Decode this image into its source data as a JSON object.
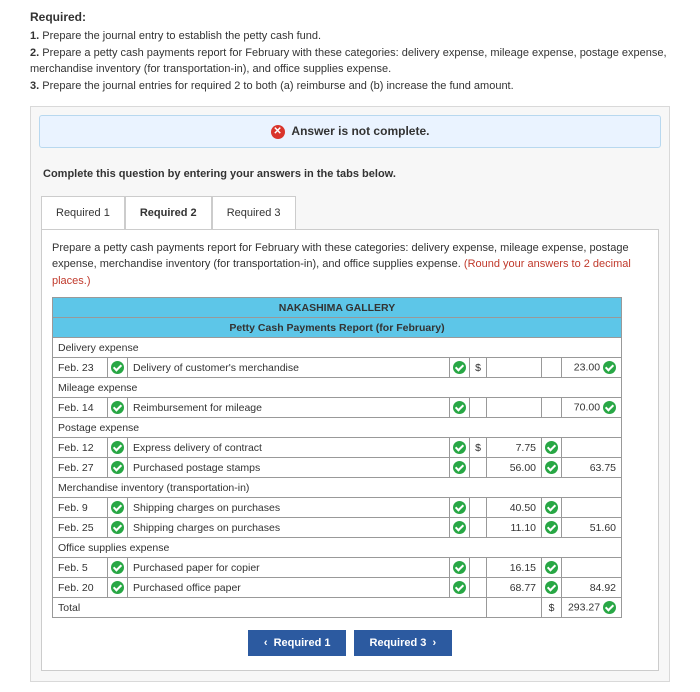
{
  "required": {
    "heading": "Required:",
    "items": [
      {
        "num": "1.",
        "text": "Prepare the journal entry to establish the petty cash fund."
      },
      {
        "num": "2.",
        "text": "Prepare a petty cash payments report for February with these categories: delivery expense, mileage expense, postage expense, merchandise inventory (for transportation-in), and office supplies expense."
      },
      {
        "num": "3.",
        "text": "Prepare the journal entries for required 2 to both (a) reimburse and (b) increase the fund amount."
      }
    ]
  },
  "alert_text": "Answer is not complete.",
  "instruction": "Complete this question by entering your answers in the tabs below.",
  "tabs": [
    {
      "label": "Required 1"
    },
    {
      "label": "Required 2"
    },
    {
      "label": "Required 3"
    }
  ],
  "tab_desc": {
    "main": "Prepare a petty cash payments report for February with these categories: delivery expense, mileage expense, postage expense, merchandise inventory (for transportation-in), and office supplies expense. ",
    "note": "(Round your answers to 2 decimal places.)"
  },
  "report": {
    "company": "NAKASHIMA GALLERY",
    "title": "Petty Cash Payments Report (for February)",
    "sections": [
      {
        "category": "Delivery expense",
        "rows": [
          {
            "date": "Feb. 23",
            "desc": "Delivery of customer's merchandise",
            "amt": "",
            "cur": "$",
            "row_total": "23.00",
            "has_badge": true,
            "has_amt_badge": false,
            "has_total_badge": true
          }
        ]
      },
      {
        "category": "Mileage expense",
        "rows": [
          {
            "date": "Feb. 14",
            "desc": "Reimbursement for mileage",
            "amt": "",
            "cur": "",
            "row_total": "70.00",
            "has_badge": true,
            "has_amt_badge": false,
            "has_total_badge": true
          }
        ]
      },
      {
        "category": "Postage expense",
        "rows": [
          {
            "date": "Feb. 12",
            "desc": "Express delivery of contract",
            "amt": "7.75",
            "cur": "$",
            "row_total": "",
            "has_badge": true,
            "has_amt_badge": true,
            "has_total_badge": false
          },
          {
            "date": "Feb. 27",
            "desc": "Purchased postage stamps",
            "amt": "56.00",
            "cur": "",
            "row_total": "63.75",
            "has_badge": true,
            "has_amt_badge": true,
            "has_total_badge": false
          }
        ]
      },
      {
        "category": "Merchandise inventory (transportation-in)",
        "rows": [
          {
            "date": "Feb. 9",
            "desc": "Shipping charges on purchases",
            "amt": "40.50",
            "cur": "",
            "row_total": "",
            "has_badge": true,
            "has_amt_badge": true,
            "has_total_badge": false
          },
          {
            "date": "Feb. 25",
            "desc": "Shipping charges on purchases",
            "amt": "11.10",
            "cur": "",
            "row_total": "51.60",
            "has_badge": true,
            "has_amt_badge": true,
            "has_total_badge": false
          }
        ]
      },
      {
        "category": "Office supplies expense",
        "rows": [
          {
            "date": "Feb. 5",
            "desc": "Purchased paper for copier",
            "amt": "16.15",
            "cur": "",
            "row_total": "",
            "has_badge": true,
            "has_amt_badge": true,
            "has_total_badge": false
          },
          {
            "date": "Feb. 20",
            "desc": "Purchased office paper",
            "amt": "68.77",
            "cur": "",
            "row_total": "84.92",
            "has_badge": true,
            "has_amt_badge": true,
            "has_total_badge": false
          }
        ]
      }
    ],
    "total_label": "Total",
    "total_cur": "$",
    "total_val": "293.27"
  },
  "nav": {
    "prev": "Required 1",
    "next": "Required 3"
  },
  "colors": {
    "header_bg": "#5dc6e8",
    "alert_bg": "#eaf3ff",
    "btn_bg": "#2c5aa0",
    "check_bg": "#28a745",
    "error_bg": "#d9342b"
  }
}
